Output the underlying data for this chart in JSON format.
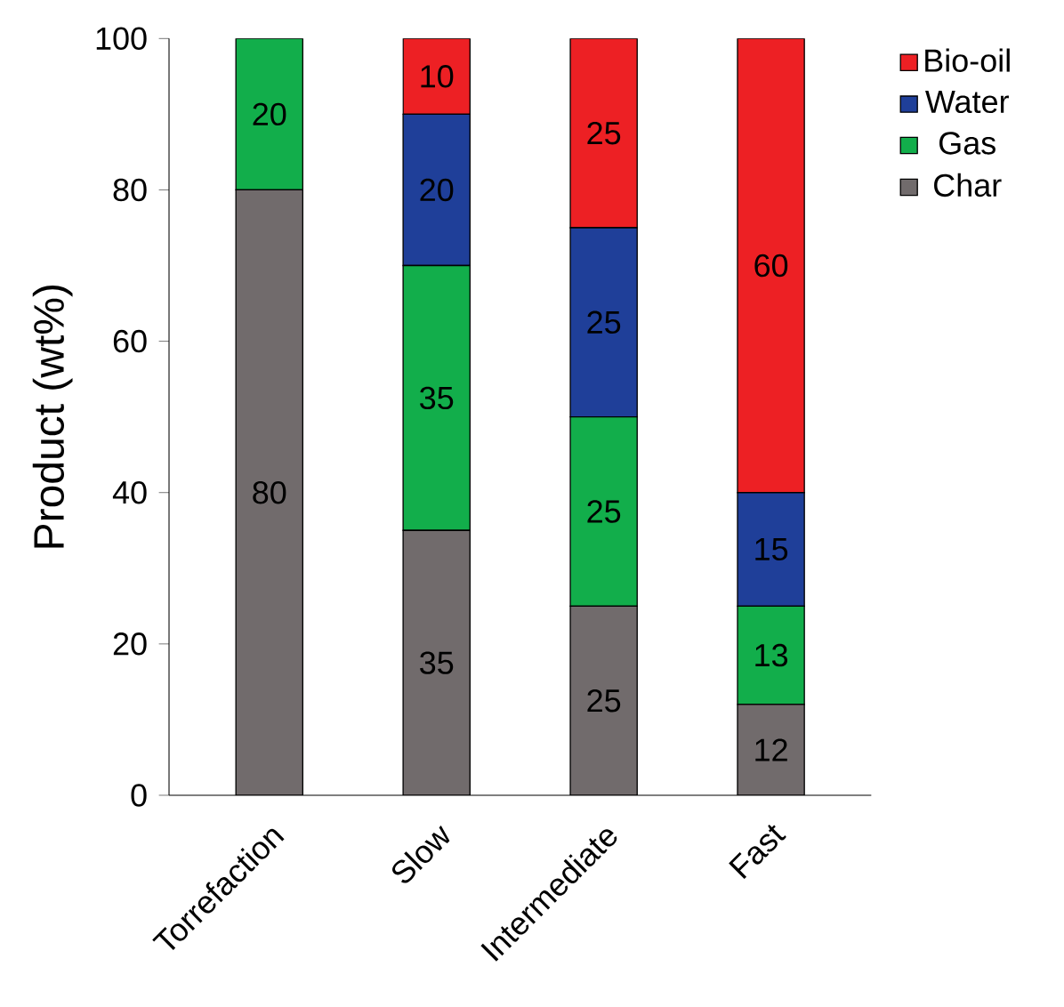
{
  "chart_data": {
    "type": "bar",
    "stacked": true,
    "ylabel": "Product (wt%)",
    "categories": [
      "Torrefaction",
      "Slow",
      "Intermediate",
      "Fast"
    ],
    "series": [
      {
        "name": "Char",
        "color": "#716b6c",
        "values": [
          80,
          35,
          25,
          12
        ]
      },
      {
        "name": "Gas",
        "color": "#12ae4b",
        "values": [
          20,
          35,
          25,
          13
        ]
      },
      {
        "name": "Water",
        "color": "#1f3f99",
        "values": [
          null,
          20,
          25,
          15
        ]
      },
      {
        "name": "Bio-oil",
        "color": "#ed2024",
        "values": [
          null,
          10,
          25,
          60
        ]
      }
    ],
    "ylim": [
      0,
      100
    ],
    "yticks": [
      0,
      20,
      40,
      60,
      80,
      100
    ],
    "data_labels": true,
    "legend": "top right"
  }
}
